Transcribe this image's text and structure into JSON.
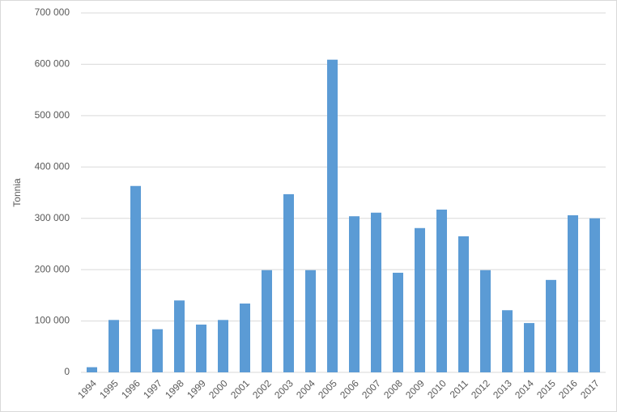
{
  "chart_data": {
    "type": "bar",
    "y_label": "Tonnia",
    "categories": [
      "1994",
      "1995",
      "1996",
      "1997",
      "1998",
      "1999",
      "2000",
      "2001",
      "2002",
      "2003",
      "2004",
      "2005",
      "2006",
      "2007",
      "2008",
      "2009",
      "2010",
      "2011",
      "2012",
      "2013",
      "2014",
      "2015",
      "2016",
      "2017"
    ],
    "values": [
      10000,
      102000,
      363000,
      84000,
      140000,
      93000,
      102000,
      134000,
      199000,
      347000,
      199000,
      609000,
      304000,
      311000,
      194000,
      281000,
      317000,
      265000,
      199000,
      121000,
      96000,
      180000,
      306000,
      300000
    ],
    "color": "#5b9bd5",
    "ylim": [
      0,
      700000
    ],
    "yticks": [
      0,
      {
        "value": 100000,
        "label": "100 000"
      },
      {
        "value": 200000,
        "label": "200 000"
      },
      {
        "value": 300000,
        "label": "300 000"
      },
      {
        "value": 400000,
        "label": "400 000"
      },
      {
        "value": 500000,
        "label": "500 000"
      },
      {
        "value": 600000,
        "label": "600 000"
      },
      {
        "value": 700000,
        "label": "700 000"
      }
    ],
    "grid": true
  }
}
